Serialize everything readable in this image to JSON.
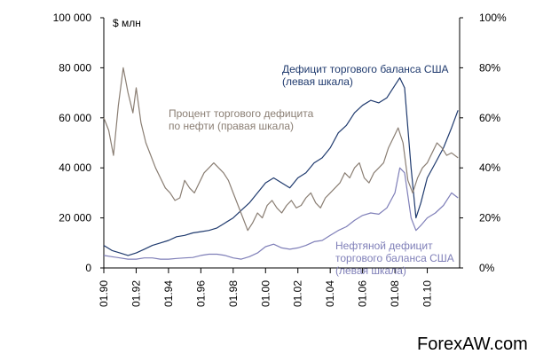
{
  "chart_data": {
    "type": "line",
    "unit_label": "$ млн",
    "left_axis": {
      "ylim": [
        0,
        100000
      ],
      "ticks": [
        "0",
        "20 000",
        "40 000",
        "60 000",
        "80 000",
        "100 000"
      ],
      "tick_values": [
        0,
        20000,
        40000,
        60000,
        80000,
        100000
      ]
    },
    "right_axis": {
      "ylim": [
        0,
        100
      ],
      "ticks": [
        "0%",
        "20%",
        "40%",
        "60%",
        "80%",
        "100%"
      ],
      "tick_values": [
        0,
        20,
        40,
        60,
        80,
        100
      ]
    },
    "x_axis": {
      "xlim": [
        1990,
        2012
      ],
      "tick_labels": [
        "01.90",
        "01.92",
        "01.94",
        "01.96",
        "01.98",
        "01.00",
        "01.02",
        "01.04",
        "01.06",
        "01.08",
        "01.10"
      ],
      "tick_values": [
        1990,
        1992,
        1994,
        1996,
        1998,
        2000,
        2002,
        2004,
        2006,
        2008,
        2010
      ]
    },
    "grid": false,
    "legend": "none",
    "annotations": [
      {
        "lines": [
          "Дефицит торгового баланса США",
          "(левая шкала)"
        ],
        "color": "#1f3a6e"
      },
      {
        "lines": [
          "Процент торгового дефицита",
          "по нефти (правая шкала)"
        ],
        "color": "#8a7e73"
      },
      {
        "lines": [
          "Нефтяной дефицит",
          "торгового баланса США",
          "(левая шкала)"
        ],
        "color": "#7f7fb8"
      }
    ],
    "series": [
      {
        "axis": "left",
        "color": "#1f3a6e",
        "x": [
          1990,
          1990.5,
          1991,
          1991.5,
          1992,
          1992.5,
          1993,
          1993.5,
          1994,
          1994.5,
          1995,
          1995.5,
          1996,
          1996.5,
          1997,
          1997.5,
          1998,
          1998.5,
          1999,
          1999.5,
          2000,
          2000.5,
          2001,
          2001.5,
          2002,
          2002.5,
          2003,
          2003.5,
          2004,
          2004.5,
          2005,
          2005.5,
          2006,
          2006.5,
          2007,
          2007.5,
          2008,
          2008.3,
          2008.6,
          2009,
          2009.3,
          2009.6,
          2010,
          2010.5,
          2011,
          2011.5,
          2011.9
        ],
        "y": [
          9000,
          7000,
          6000,
          5000,
          6000,
          7500,
          9000,
          10000,
          11000,
          12500,
          13000,
          14000,
          14500,
          15000,
          16000,
          18000,
          20000,
          23000,
          26000,
          30000,
          34000,
          36000,
          34000,
          32000,
          36000,
          38000,
          42000,
          44000,
          48000,
          54000,
          57000,
          62000,
          65000,
          67000,
          66000,
          68000,
          73000,
          76000,
          72000,
          40000,
          20000,
          26000,
          36000,
          42000,
          48000,
          56000,
          63000
        ]
      },
      {
        "axis": "right",
        "color": "#8a7e73",
        "x": [
          1990,
          1990.3,
          1990.6,
          1990.9,
          1991.2,
          1991.5,
          1991.8,
          1992,
          1992.3,
          1992.6,
          1992.9,
          1993.2,
          1993.5,
          1993.8,
          1994.1,
          1994.4,
          1994.7,
          1995,
          1995.3,
          1995.6,
          1995.9,
          1996.2,
          1996.5,
          1996.8,
          1997.1,
          1997.4,
          1997.7,
          1998,
          1998.3,
          1998.6,
          1998.9,
          1999.2,
          1999.5,
          1999.8,
          2000.1,
          2000.4,
          2000.7,
          2001,
          2001.3,
          2001.6,
          2001.9,
          2002.2,
          2002.5,
          2002.8,
          2003.1,
          2003.4,
          2003.7,
          2004,
          2004.3,
          2004.6,
          2004.9,
          2005.2,
          2005.5,
          2005.8,
          2006.1,
          2006.4,
          2006.7,
          2007,
          2007.3,
          2007.6,
          2007.9,
          2008.2,
          2008.5,
          2008.8,
          2009.1,
          2009.4,
          2009.7,
          2010,
          2010.3,
          2010.6,
          2010.9,
          2011.2,
          2011.5,
          2011.9
        ],
        "y": [
          60,
          55,
          45,
          65,
          80,
          70,
          62,
          72,
          58,
          50,
          45,
          40,
          36,
          32,
          30,
          27,
          28,
          35,
          32,
          30,
          34,
          38,
          40,
          42,
          40,
          38,
          35,
          30,
          25,
          20,
          15,
          18,
          22,
          20,
          25,
          27,
          24,
          22,
          25,
          27,
          24,
          25,
          28,
          30,
          26,
          24,
          28,
          30,
          32,
          34,
          38,
          36,
          40,
          42,
          36,
          34,
          38,
          40,
          42,
          48,
          52,
          56,
          50,
          35,
          30,
          36,
          40,
          42,
          46,
          50,
          48,
          45,
          46,
          44
        ]
      },
      {
        "axis": "left",
        "color": "#7f7fb8",
        "x": [
          1990,
          1990.5,
          1991,
          1991.5,
          1992,
          1992.5,
          1993,
          1993.5,
          1994,
          1994.5,
          1995,
          1995.5,
          1996,
          1996.5,
          1997,
          1997.5,
          1998,
          1998.5,
          1999,
          1999.5,
          2000,
          2000.5,
          2001,
          2001.5,
          2002,
          2002.5,
          2003,
          2003.5,
          2004,
          2004.5,
          2005,
          2005.5,
          2006,
          2006.5,
          2007,
          2007.5,
          2008,
          2008.3,
          2008.6,
          2009,
          2009.3,
          2009.6,
          2010,
          2010.5,
          2011,
          2011.5,
          2011.9
        ],
        "y": [
          5000,
          4500,
          4000,
          3500,
          3500,
          4000,
          4000,
          3500,
          3500,
          3800,
          4000,
          4200,
          5000,
          5500,
          5500,
          5000,
          4000,
          3500,
          4500,
          6000,
          8500,
          9500,
          8000,
          7500,
          8000,
          9000,
          10500,
          11000,
          13000,
          15000,
          16500,
          19000,
          21000,
          22000,
          21500,
          24000,
          30000,
          40000,
          38000,
          20000,
          15000,
          17000,
          20000,
          22000,
          25000,
          30000,
          28000
        ]
      }
    ]
  },
  "footer": {
    "watermark": "ForexAW.com"
  }
}
